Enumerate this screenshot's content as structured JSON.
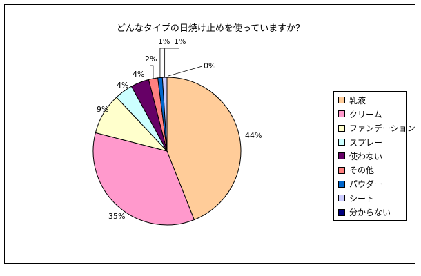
{
  "chart_data": {
    "type": "pie",
    "title": "どんなタイプの日焼け止めを使っていますか？",
    "categories": [
      "乳液",
      "クリーム",
      "ファンデーション",
      "スプレー",
      "使わない",
      "その他",
      "パウダー",
      "シート",
      "分からない"
    ],
    "values": [
      44,
      35,
      9,
      4,
      4,
      2,
      1,
      1,
      0
    ],
    "value_labels": [
      "44%",
      "35%",
      "9%",
      "4%",
      "4%",
      "2%",
      "1%",
      "1%",
      "0%"
    ],
    "colors": [
      "#FFCC99",
      "#FF99CC",
      "#FFFFCC",
      "#CCFFFF",
      "#660066",
      "#FF8080",
      "#0066CC",
      "#CCCCFF",
      "#000080"
    ],
    "legend": "right",
    "start": "top, clockwise"
  }
}
